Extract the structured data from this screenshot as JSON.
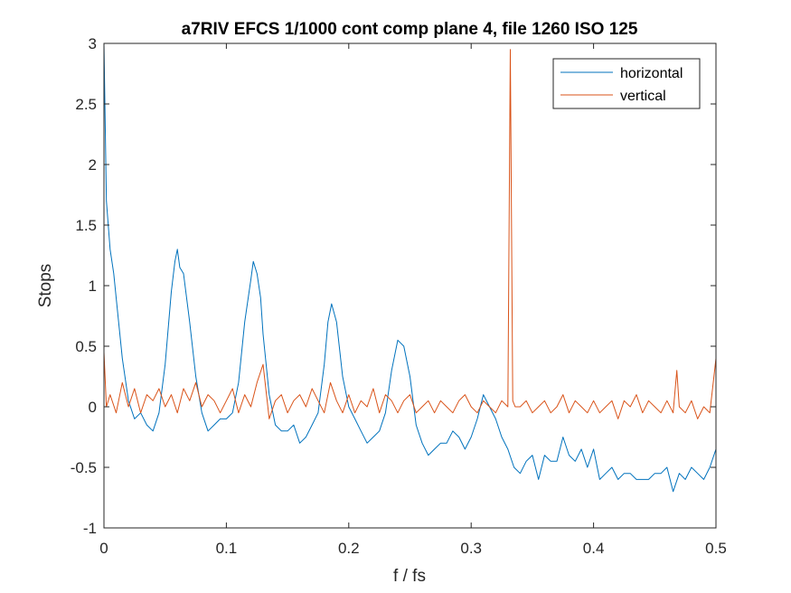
{
  "chart_data": {
    "type": "line",
    "title": "a7RIV EFCS 1/1000 cont comp plane 4, file 1260 ISO 125",
    "xlabel": "f / fs",
    "ylabel": "Stops",
    "xlim": [
      0,
      0.5
    ],
    "ylim": [
      -1,
      3
    ],
    "xticks": [
      0,
      0.1,
      0.2,
      0.3,
      0.4,
      0.5
    ],
    "xtick_labels": [
      "0",
      "0.1",
      "0.2",
      "0.3",
      "0.4",
      "0.5"
    ],
    "yticks": [
      -1,
      -0.5,
      0,
      0.5,
      1,
      1.5,
      2,
      2.5,
      3
    ],
    "ytick_labels": [
      "-1",
      "-0.5",
      "0",
      "0.5",
      "1",
      "1.5",
      "2",
      "2.5",
      "3"
    ],
    "grid": false,
    "legend_position": "top-right",
    "series": [
      {
        "name": "horizontal",
        "color": "#0072BD",
        "x": [
          0,
          0.002,
          0.005,
          0.008,
          0.01,
          0.015,
          0.02,
          0.025,
          0.03,
          0.035,
          0.04,
          0.045,
          0.05,
          0.055,
          0.058,
          0.06,
          0.062,
          0.065,
          0.07,
          0.075,
          0.08,
          0.085,
          0.09,
          0.095,
          0.1,
          0.105,
          0.11,
          0.115,
          0.12,
          0.122,
          0.125,
          0.128,
          0.13,
          0.135,
          0.14,
          0.145,
          0.15,
          0.155,
          0.16,
          0.165,
          0.17,
          0.175,
          0.18,
          0.183,
          0.186,
          0.19,
          0.195,
          0.2,
          0.205,
          0.21,
          0.215,
          0.22,
          0.225,
          0.23,
          0.235,
          0.24,
          0.245,
          0.25,
          0.255,
          0.26,
          0.265,
          0.27,
          0.275,
          0.28,
          0.285,
          0.29,
          0.295,
          0.3,
          0.305,
          0.31,
          0.315,
          0.32,
          0.325,
          0.33,
          0.335,
          0.34,
          0.345,
          0.35,
          0.355,
          0.36,
          0.365,
          0.37,
          0.375,
          0.38,
          0.385,
          0.39,
          0.395,
          0.4,
          0.405,
          0.41,
          0.415,
          0.42,
          0.425,
          0.43,
          0.435,
          0.44,
          0.445,
          0.45,
          0.455,
          0.46,
          0.465,
          0.47,
          0.475,
          0.48,
          0.485,
          0.49,
          0.495,
          0.5
        ],
        "y": [
          3.0,
          1.7,
          1.3,
          1.1,
          0.9,
          0.4,
          0.05,
          -0.1,
          -0.05,
          -0.15,
          -0.2,
          -0.05,
          0.35,
          0.95,
          1.2,
          1.3,
          1.15,
          1.1,
          0.7,
          0.25,
          -0.05,
          -0.2,
          -0.15,
          -0.1,
          -0.1,
          -0.05,
          0.2,
          0.7,
          1.05,
          1.2,
          1.1,
          0.9,
          0.6,
          0.1,
          -0.15,
          -0.2,
          -0.2,
          -0.15,
          -0.3,
          -0.25,
          -0.15,
          -0.05,
          0.35,
          0.7,
          0.85,
          0.7,
          0.25,
          0.0,
          -0.1,
          -0.2,
          -0.3,
          -0.25,
          -0.2,
          -0.05,
          0.3,
          0.55,
          0.5,
          0.25,
          -0.15,
          -0.3,
          -0.4,
          -0.35,
          -0.3,
          -0.3,
          -0.2,
          -0.25,
          -0.35,
          -0.25,
          -0.1,
          0.1,
          0.0,
          -0.1,
          -0.25,
          -0.35,
          -0.5,
          -0.55,
          -0.45,
          -0.4,
          -0.6,
          -0.4,
          -0.45,
          -0.45,
          -0.25,
          -0.4,
          -0.45,
          -0.35,
          -0.5,
          -0.35,
          -0.6,
          -0.55,
          -0.5,
          -0.6,
          -0.55,
          -0.55,
          -0.6,
          -0.6,
          -0.6,
          -0.55,
          -0.55,
          -0.5,
          -0.7,
          -0.55,
          -0.6,
          -0.5,
          -0.55,
          -0.6,
          -0.5,
          -0.35
        ]
      },
      {
        "name": "vertical",
        "color": "#D95319",
        "x": [
          0,
          0.002,
          0.005,
          0.01,
          0.015,
          0.02,
          0.025,
          0.03,
          0.035,
          0.04,
          0.045,
          0.05,
          0.055,
          0.06,
          0.065,
          0.07,
          0.075,
          0.08,
          0.085,
          0.09,
          0.095,
          0.1,
          0.105,
          0.11,
          0.115,
          0.12,
          0.125,
          0.13,
          0.135,
          0.14,
          0.145,
          0.15,
          0.155,
          0.16,
          0.165,
          0.17,
          0.175,
          0.18,
          0.185,
          0.19,
          0.195,
          0.2,
          0.205,
          0.21,
          0.215,
          0.22,
          0.225,
          0.23,
          0.235,
          0.24,
          0.245,
          0.25,
          0.255,
          0.26,
          0.265,
          0.27,
          0.275,
          0.28,
          0.285,
          0.29,
          0.295,
          0.3,
          0.305,
          0.31,
          0.315,
          0.32,
          0.325,
          0.33,
          0.332,
          0.334,
          0.336,
          0.34,
          0.345,
          0.35,
          0.355,
          0.36,
          0.365,
          0.37,
          0.375,
          0.38,
          0.385,
          0.39,
          0.395,
          0.4,
          0.405,
          0.41,
          0.415,
          0.42,
          0.425,
          0.43,
          0.435,
          0.44,
          0.445,
          0.45,
          0.455,
          0.46,
          0.465,
          0.468,
          0.47,
          0.475,
          0.48,
          0.485,
          0.49,
          0.495,
          0.5
        ],
        "y": [
          0.45,
          0.0,
          0.1,
          -0.05,
          0.2,
          0.0,
          0.15,
          -0.05,
          0.1,
          0.05,
          0.15,
          0.0,
          0.1,
          -0.05,
          0.15,
          0.05,
          0.2,
          0.0,
          0.1,
          0.05,
          -0.05,
          0.05,
          0.15,
          -0.05,
          0.1,
          0.0,
          0.2,
          0.35,
          -0.1,
          0.05,
          0.1,
          -0.05,
          0.05,
          0.1,
          0.0,
          0.15,
          0.05,
          -0.05,
          0.2,
          0.05,
          -0.05,
          0.1,
          -0.05,
          0.05,
          0.0,
          0.15,
          -0.05,
          0.1,
          0.05,
          -0.05,
          0.05,
          0.1,
          -0.05,
          0.0,
          0.05,
          -0.05,
          0.05,
          0.0,
          -0.05,
          0.05,
          0.1,
          0.0,
          -0.05,
          0.05,
          0.0,
          -0.05,
          0.05,
          0.0,
          2.95,
          0.05,
          0.0,
          0.0,
          0.05,
          -0.05,
          0.0,
          0.05,
          -0.05,
          0.0,
          0.1,
          -0.05,
          0.05,
          0.0,
          -0.05,
          0.05,
          -0.05,
          0.0,
          0.05,
          -0.1,
          0.05,
          0.0,
          0.1,
          -0.05,
          0.05,
          0.0,
          -0.05,
          0.05,
          -0.05,
          0.3,
          0.0,
          -0.05,
          0.05,
          -0.1,
          0.0,
          -0.05,
          0.4
        ]
      }
    ]
  }
}
